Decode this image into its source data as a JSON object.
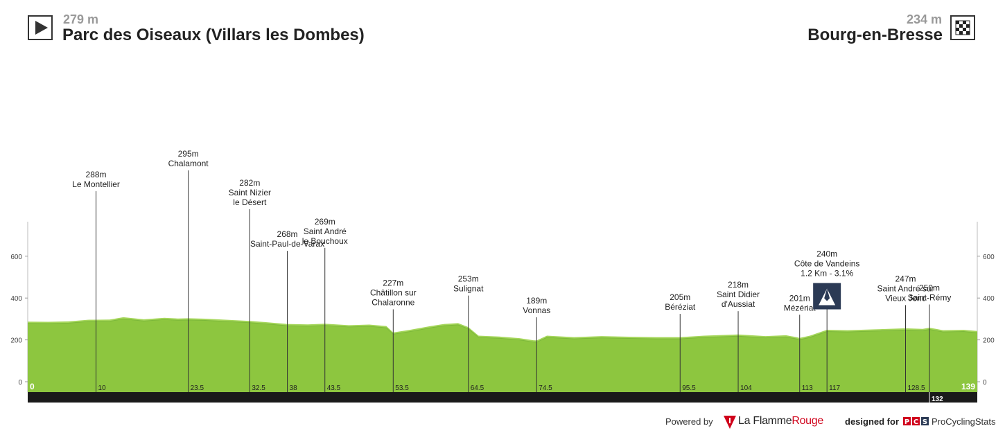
{
  "header": {
    "start": {
      "altitude": "279 m",
      "name": "Parc des Oiseaux (Villars les Dombes)"
    },
    "finish": {
      "altitude": "234 m",
      "name": "Bourg-en-Bresse"
    }
  },
  "footer": {
    "powered_by": "Powered by",
    "flamme_rouge_part1": "La Flamme",
    "flamme_rouge_part2": "Rouge",
    "designed_for": "designed for",
    "pcs_letters": [
      "P",
      "C",
      "S"
    ],
    "procyclingstats": "ProCyclingStats"
  },
  "icons": {
    "start": "play-icon",
    "finish": "checkered-flag-icon",
    "climb": "mountain-icon"
  },
  "colors": {
    "fill": "#8dc63f",
    "fill_light": "#a5d65a",
    "bar": "#1a1a1a",
    "text": "#222222",
    "flamme_red": "#d0021b"
  },
  "chart_data": {
    "type": "area",
    "title": "",
    "xlabel": "",
    "ylabel": "",
    "xlim": [
      0,
      139
    ],
    "ylim": [
      -50,
      750
    ],
    "y_ticks": [
      0,
      200,
      400,
      600
    ],
    "grid": false,
    "profile": {
      "x": [
        0,
        3,
        6,
        9,
        10,
        12,
        14,
        17,
        20,
        22,
        23.5,
        26,
        29,
        32.5,
        35,
        38,
        41,
        43.5,
        47,
        50,
        52.5,
        53.5,
        56,
        59,
        61,
        63,
        64.5,
        66,
        69,
        72,
        74,
        74.5,
        76,
        80,
        84,
        88,
        92,
        95.5,
        99,
        104,
        108,
        111,
        112.5,
        113,
        114.5,
        117,
        120,
        124,
        128.5,
        131,
        132,
        134,
        137,
        139
      ],
      "y": [
        279,
        278,
        280,
        288,
        288,
        289,
        300,
        290,
        297,
        294,
        295,
        293,
        288,
        282,
        276,
        268,
        266,
        269,
        262,
        265,
        258,
        227,
        240,
        258,
        268,
        272,
        253,
        212,
        208,
        200,
        190,
        189,
        212,
        205,
        210,
        207,
        205,
        205,
        212,
        218,
        210,
        214,
        205,
        201,
        212,
        240,
        238,
        242,
        247,
        244,
        250,
        238,
        240,
        234
      ]
    },
    "x_marks": [
      "0",
      "10",
      "23.5",
      "32.5",
      "38",
      "43.5",
      "53.5",
      "64.5",
      "74.5",
      "95.5",
      "104",
      "113",
      "117",
      "128.5",
      "139"
    ],
    "final_marker": "132",
    "waypoints": [
      {
        "km": 10,
        "lines": [
          "288m",
          "Le Montellier"
        ]
      },
      {
        "km": 23.5,
        "lines": [
          "295m",
          "Chalamont"
        ]
      },
      {
        "km": 32.5,
        "lines": [
          "282m",
          "Saint Nizier",
          "le Désert"
        ]
      },
      {
        "km": 38,
        "lines": [
          "268m",
          "Saint-Paul-de-Varax"
        ]
      },
      {
        "km": 43.5,
        "lines": [
          "269m",
          "Saint André",
          "le Bouchoux"
        ]
      },
      {
        "km": 53.5,
        "lines": [
          "227m",
          "Châtillon sur",
          "Chalaronne"
        ]
      },
      {
        "km": 64.5,
        "lines": [
          "253m",
          "Sulignat"
        ]
      },
      {
        "km": 74.5,
        "lines": [
          "189m",
          "Vonnas"
        ]
      },
      {
        "km": 95.5,
        "lines": [
          "205m",
          "Béréziat"
        ]
      },
      {
        "km": 104,
        "lines": [
          "218m",
          "Saint Didier",
          "d'Aussiat"
        ]
      },
      {
        "km": 113,
        "lines": [
          "201m",
          "Mézériat"
        ]
      },
      {
        "km": 117,
        "lines": [
          "240m",
          "Côte de Vandeins",
          "1.2 Km - 3.1%"
        ],
        "climb": true
      },
      {
        "km": 128.5,
        "lines": [
          "247m",
          "Saint André sur",
          "Vieux Jonc"
        ]
      },
      {
        "km": 132,
        "lines": [
          "250m",
          "Saint-Rémy"
        ]
      }
    ]
  }
}
